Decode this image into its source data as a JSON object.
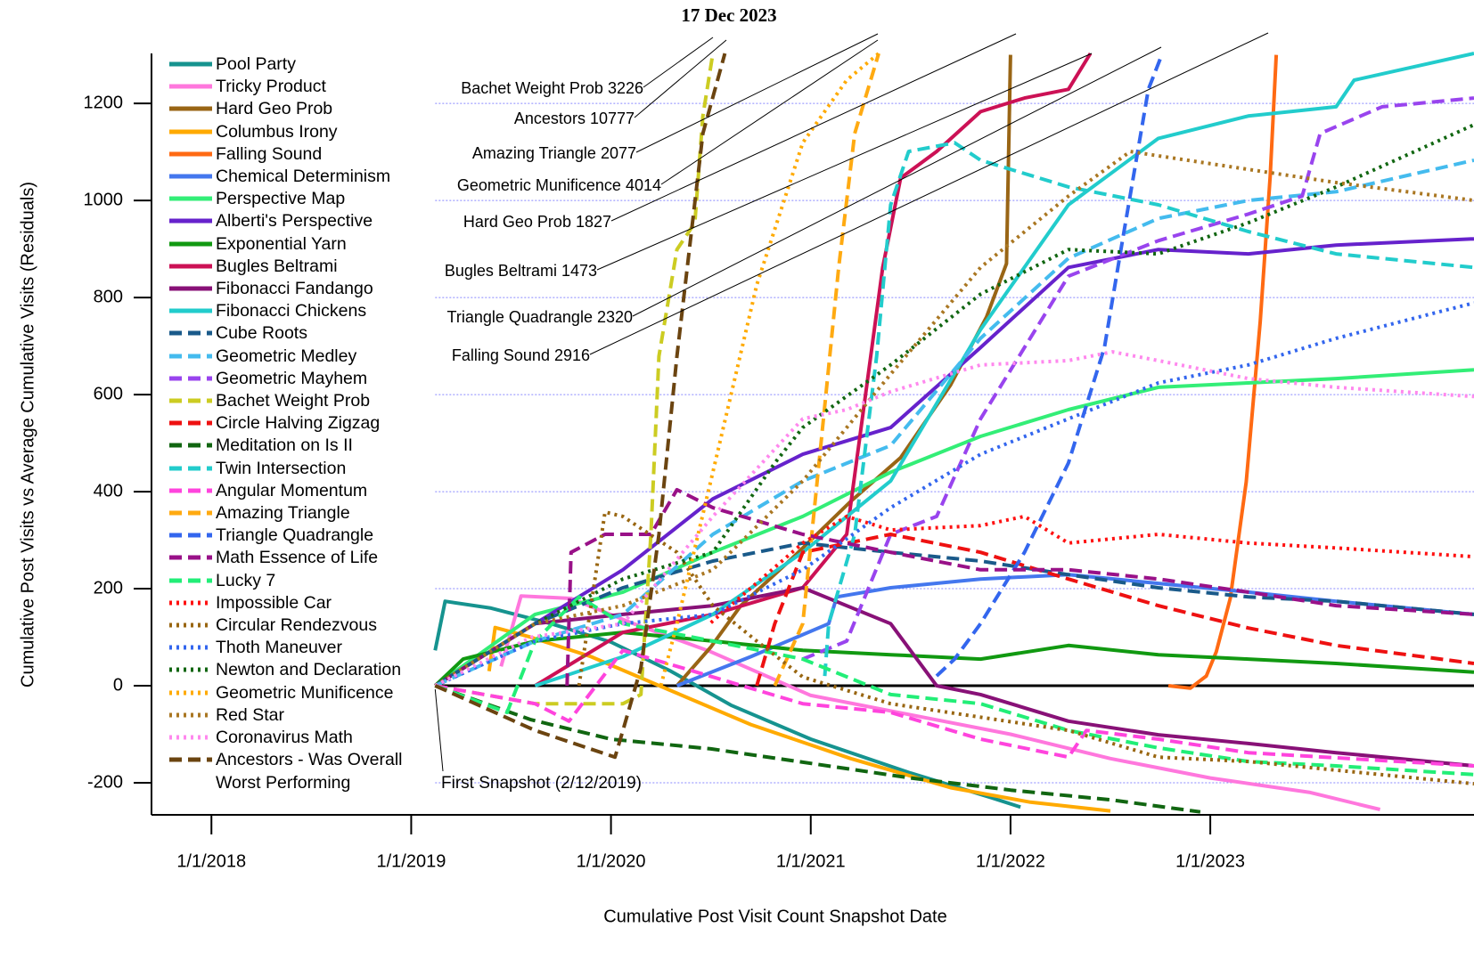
{
  "chart_data": {
    "type": "line",
    "title": "17 Dec 2023",
    "x_label": "Cumulative Post Visit Count Snapshot Date",
    "y_label": "Cumulative Post Visits vs Average Cumulative Visits (Residuals)",
    "xlim": [
      2017.7,
      2024.32
    ],
    "ylim": [
      -266,
      1303
    ],
    "xticks": [
      {
        "value": 2018,
        "label": "1/1/2018"
      },
      {
        "value": 2019,
        "label": "1/1/2019"
      },
      {
        "value": 2020,
        "label": "1/1/2020"
      },
      {
        "value": 2021,
        "label": "1/1/2021"
      },
      {
        "value": 2022,
        "label": "1/1/2022"
      },
      {
        "value": 2023,
        "label": "1/1/2023"
      }
    ],
    "yticks": [
      -200,
      0,
      200,
      400,
      600,
      800,
      1000,
      1200
    ],
    "grid": true,
    "legend": "upper-left",
    "annotations": [
      "Bachet Weight Prob 3226",
      "Ancestors 10777",
      "Amazing Triangle 2077",
      "Geometric Munificence 4014",
      "Hard Geo Prob 1827",
      "Bugles Beltrami 1473",
      "Triangle Quadrangle 2320",
      "Falling Sound 2916",
      "First Snapshot (2/12/2019)"
    ],
    "series": [
      {
        "name": "Pool Party",
        "color": "#16938f",
        "style": "solid",
        "x": [
          2019.12,
          2019.17,
          2019.4,
          2019.7,
          2020.0,
          2020.3,
          2020.6,
          2021.0,
          2021.5,
          2021.9,
          2022.05
        ],
        "values": [
          73,
          174,
          160,
          128,
          90,
          30,
          -40,
          -110,
          -180,
          -230,
          -250
        ]
      },
      {
        "name": "Tricky Product",
        "color": "#ff77dd",
        "style": "solid",
        "x": [
          2019.45,
          2019.55,
          2019.8,
          2020.1,
          2020.5,
          2021.0,
          2021.5,
          2022.0,
          2022.5,
          2023.0,
          2023.5,
          2023.85
        ],
        "values": [
          40,
          185,
          180,
          130,
          70,
          -20,
          -60,
          -100,
          -150,
          -190,
          -220,
          -255
        ]
      },
      {
        "name": "Hard Geo Prob",
        "color": "#996515",
        "style": "solid",
        "x": [
          2020.33,
          2020.5,
          2020.65,
          2020.9,
          2021.2,
          2021.45,
          2021.7,
          2021.88,
          2021.98,
          2022.0
        ],
        "values": [
          0,
          80,
          165,
          260,
          380,
          470,
          620,
          760,
          870,
          1300
        ]
      },
      {
        "name": "Columbus Irony",
        "color": "#ffaa00",
        "style": "solid",
        "x": [
          2019.39,
          2019.42,
          2019.6,
          2019.9,
          2020.3,
          2020.7,
          2021.2,
          2021.7,
          2022.1,
          2022.5
        ],
        "values": [
          30,
          120,
          100,
          60,
          -10,
          -80,
          -150,
          -210,
          -240,
          -258
        ]
      },
      {
        "name": "Falling Sound",
        "color": "#ff6a13",
        "style": "solid",
        "x": [
          2022.79,
          2022.9,
          2022.98,
          2023.03,
          2023.1,
          2023.18,
          2023.25,
          2023.3,
          2023.33
        ],
        "values": [
          0,
          -5,
          20,
          70,
          180,
          420,
          750,
          1050,
          1300
        ]
      },
      {
        "name": "Chemical Determinism",
        "color": "#4477ee",
        "style": "solid",
        "x": [
          2020.33,
          2020.7,
          2021.09,
          2021.13,
          2021.4,
          2021.85,
          2022.29,
          2022.74,
          2023.19,
          2023.63,
          2024.32
        ],
        "values": [
          0,
          60,
          128,
          183,
          202,
          220,
          229,
          211,
          193,
          174,
          147
        ]
      },
      {
        "name": "Perspective Map",
        "color": "#33ee77",
        "style": "solid",
        "x": [
          2019.12,
          2019.62,
          2020.06,
          2020.51,
          2020.96,
          2021.4,
          2021.85,
          2022.29,
          2022.74,
          2023.19,
          2023.63,
          2024.32
        ],
        "values": [
          0,
          147,
          193,
          275,
          349,
          440,
          514,
          569,
          615,
          624,
          633,
          651
        ]
      },
      {
        "name": "Alberti's Perspective",
        "color": "#6622cc",
        "style": "solid",
        "x": [
          2019.12,
          2019.62,
          2020.06,
          2020.51,
          2020.96,
          2021.4,
          2021.85,
          2022.29,
          2022.74,
          2023.19,
          2023.63,
          2024.32
        ],
        "values": [
          0,
          128,
          239,
          385,
          477,
          532,
          697,
          862,
          899,
          890,
          908,
          921
        ]
      },
      {
        "name": "Exponential Yarn",
        "color": "#119911",
        "style": "solid",
        "x": [
          2019.12,
          2019.26,
          2019.62,
          2020.06,
          2020.51,
          2020.96,
          2021.4,
          2021.85,
          2022.29,
          2022.74,
          2023.19,
          2023.63,
          2024.32
        ],
        "values": [
          0,
          55,
          92,
          110,
          92,
          73,
          64,
          55,
          83,
          64,
          55,
          46,
          28
        ]
      },
      {
        "name": "Bugles Beltrami",
        "color": "#cc1155",
        "style": "solid",
        "x": [
          2019.62,
          2020.06,
          2020.51,
          2020.96,
          2021.18,
          2021.36,
          2021.45,
          2021.63,
          2021.85,
          2022.07,
          2022.29,
          2022.4
        ],
        "values": [
          0,
          110,
          147,
          202,
          312,
          862,
          1046,
          1101,
          1183,
          1211,
          1229,
          1303
        ]
      },
      {
        "name": "Fibonacci Fandango",
        "color": "#881177",
        "style": "solid",
        "x": [
          2019.12,
          2019.62,
          2020.06,
          2020.51,
          2020.96,
          2021.4,
          2021.63,
          2021.85,
          2022.29,
          2022.74,
          2023.19,
          2023.63,
          2024.32
        ],
        "values": [
          0,
          128,
          147,
          165,
          202,
          128,
          0,
          -18,
          -73,
          -101,
          -119,
          -138,
          -165
        ]
      },
      {
        "name": "Fibonacci Chickens",
        "color": "#22cccc",
        "style": "solid",
        "x": [
          2019.62,
          2020.06,
          2020.51,
          2020.96,
          2021.4,
          2021.85,
          2022.29,
          2022.74,
          2023.19,
          2023.63,
          2023.72,
          2024.32
        ],
        "values": [
          0,
          60,
          147,
          275,
          422,
          734,
          991,
          1128,
          1174,
          1193,
          1248,
          1303
        ]
      },
      {
        "name": "Cube Roots",
        "color": "#1a5a8a",
        "style": "dashed",
        "x": [
          2019.12,
          2019.62,
          2020.06,
          2020.51,
          2020.96,
          2021.4,
          2021.85,
          2022.29,
          2022.74,
          2023.19,
          2023.63,
          2024.32
        ],
        "values": [
          0,
          128,
          202,
          257,
          294,
          275,
          257,
          229,
          202,
          183,
          174,
          147
        ]
      },
      {
        "name": "Geometric Medley",
        "color": "#44bbee",
        "style": "dashed",
        "x": [
          2019.12,
          2019.62,
          2020.06,
          2020.51,
          2020.96,
          2021.4,
          2021.85,
          2022.29,
          2022.74,
          2023.19,
          2023.63,
          2024.32
        ],
        "values": [
          0,
          92,
          147,
          312,
          422,
          495,
          716,
          881,
          963,
          1000,
          1018,
          1083
        ]
      },
      {
        "name": "Geometric Mayhem",
        "color": "#9944ee",
        "style": "dashed",
        "x": [
          2020.96,
          2021.18,
          2021.4,
          2021.63,
          2021.85,
          2022.29,
          2022.74,
          2023.19,
          2023.46,
          2023.55,
          2023.86,
          2024.32
        ],
        "values": [
          55,
          92,
          312,
          349,
          550,
          844,
          917,
          972,
          1009,
          1138,
          1193,
          1211
        ]
      },
      {
        "name": "Bachet Weight Prob",
        "color": "#cccc22",
        "style": "dashed",
        "x": [
          2019.12,
          2019.62,
          2020.06,
          2020.15,
          2020.2,
          2020.24,
          2020.33,
          2020.42,
          2020.46,
          2020.51
        ],
        "values": [
          0,
          -37,
          -37,
          -18,
          312,
          679,
          899,
          954,
          1174,
          1303
        ]
      },
      {
        "name": "Circle Halving Zigzag",
        "color": "#ee1111",
        "style": "dashed",
        "x": [
          2020.73,
          2020.82,
          2020.96,
          2021.4,
          2021.85,
          2022.29,
          2022.74,
          2023.19,
          2023.63,
          2024.32
        ],
        "values": [
          0,
          128,
          275,
          312,
          275,
          220,
          165,
          119,
          83,
          46
        ]
      },
      {
        "name": "Meditation on Is II",
        "color": "#116611",
        "style": "dashed",
        "x": [
          2019.12,
          2019.6,
          2020.0,
          2020.5,
          2021.0,
          2021.5,
          2022.0,
          2022.5,
          2022.95
        ],
        "values": [
          0,
          -70,
          -110,
          -130,
          -160,
          -190,
          -215,
          -235,
          -260
        ]
      },
      {
        "name": "Twin Intersection",
        "color": "#22cccc",
        "style": "dashed",
        "x": [
          2021.07,
          2021.09,
          2021.22,
          2021.33,
          2021.4,
          2021.49,
          2021.72,
          2021.85,
          2022.29,
          2022.74,
          2023.19,
          2023.63,
          2024.32
        ],
        "values": [
          20,
          128,
          312,
          679,
          991,
          1101,
          1119,
          1083,
          1028,
          991,
          936,
          890,
          862
        ]
      },
      {
        "name": "Angular Momentum",
        "color": "#ff44dd",
        "style": "dashed",
        "x": [
          2019.12,
          2019.62,
          2019.79,
          2020.06,
          2020.51,
          2020.96,
          2021.4,
          2021.85,
          2022.29,
          2022.38,
          2022.74,
          2023.19,
          2024.32
        ],
        "values": [
          0,
          -37,
          -73,
          73,
          18,
          -37,
          -55,
          -110,
          -147,
          -92,
          -110,
          -138,
          -165
        ]
      },
      {
        "name": "Amazing Triangle",
        "color": "#ffaa11",
        "style": "dashed",
        "x": [
          2020.82,
          2020.96,
          2021.05,
          2021.14,
          2021.22,
          2021.34
        ],
        "values": [
          0,
          128,
          495,
          862,
          1138,
          1303
        ]
      },
      {
        "name": "Triangle Quadrangle",
        "color": "#3366ee",
        "style": "dashed",
        "x": [
          2021.63,
          2021.72,
          2021.85,
          2022.07,
          2022.29,
          2022.47,
          2022.56,
          2022.69,
          2022.76
        ],
        "values": [
          20,
          55,
          128,
          275,
          459,
          697,
          917,
          1229,
          1303
        ]
      },
      {
        "name": "Math Essence of Life",
        "color": "#991188",
        "style": "dashed",
        "x": [
          2019.78,
          2019.8,
          2019.97,
          2020.2,
          2020.33,
          2020.51,
          2020.96,
          2021.4,
          2021.85,
          2022.29,
          2022.74,
          2023.19,
          2023.63,
          2024.32
        ],
        "values": [
          0,
          275,
          312,
          312,
          404,
          367,
          312,
          275,
          239,
          239,
          220,
          193,
          165,
          147
        ]
      },
      {
        "name": "Lucky 7",
        "color": "#22ee77",
        "style": "dashed",
        "x": [
          2019.12,
          2019.48,
          2019.62,
          2019.84,
          2020.06,
          2020.51,
          2020.96,
          2021.4,
          2021.85,
          2022.29,
          2022.74,
          2023.19,
          2023.63,
          2024.32
        ],
        "values": [
          0,
          -55,
          92,
          183,
          128,
          92,
          55,
          -18,
          -37,
          -92,
          -128,
          -156,
          -165,
          -183
        ]
      },
      {
        "name": "Impossible Car",
        "color": "#ff1111",
        "style": "dotted",
        "x": [
          2020.5,
          2020.96,
          2021.18,
          2021.4,
          2021.85,
          2022.07,
          2022.29,
          2022.74,
          2023.19,
          2023.63,
          2024.32
        ],
        "values": [
          130,
          294,
          349,
          321,
          330,
          349,
          294,
          312,
          294,
          284,
          266
        ]
      },
      {
        "name": "Circular Rendezvous",
        "color": "#996611",
        "style": "dotted",
        "x": [
          2019.84,
          2019.97,
          2020.06,
          2020.33,
          2020.51,
          2020.73,
          2020.96,
          2021.4,
          2022.29,
          2022.74,
          2023.19,
          2024.32
        ],
        "values": [
          0,
          358,
          349,
          275,
          165,
          92,
          18,
          -37,
          -92,
          -147,
          -156,
          -202
        ]
      },
      {
        "name": "Thoth Maneuver",
        "color": "#3366ee",
        "style": "dotted",
        "x": [
          2019.12,
          2019.62,
          2020.06,
          2020.51,
          2020.96,
          2021.4,
          2021.85,
          2022.29,
          2022.74,
          2023.19,
          2023.63,
          2024.32
        ],
        "values": [
          0,
          92,
          128,
          147,
          239,
          367,
          477,
          550,
          624,
          661,
          716,
          789
        ]
      },
      {
        "name": "Newton and Declaration",
        "color": "#116611",
        "style": "dotted",
        "x": [
          2019.12,
          2019.62,
          2020.06,
          2020.51,
          2020.82,
          2020.96,
          2021.4,
          2021.85,
          2022.29,
          2022.74,
          2023.19,
          2023.63,
          2024.32
        ],
        "values": [
          0,
          128,
          220,
          275,
          459,
          532,
          661,
          807,
          899,
          890,
          954,
          1028,
          1156
        ]
      },
      {
        "name": "Geometric Munificence",
        "color": "#ffaa00",
        "style": "dotted",
        "x": [
          2020.25,
          2020.33,
          2020.51,
          2020.73,
          2020.96,
          2021.18,
          2021.34
        ],
        "values": [
          0,
          128,
          440,
          826,
          1119,
          1248,
          1303
        ]
      },
      {
        "name": "Red Star",
        "color": "#aa7722",
        "style": "dotted",
        "x": [
          2019.12,
          2019.62,
          2020.06,
          2020.51,
          2020.96,
          2021.4,
          2021.85,
          2022.29,
          2022.6,
          2022.74,
          2023.19,
          2023.63,
          2024.32
        ],
        "values": [
          0,
          128,
          165,
          239,
          422,
          642,
          862,
          1009,
          1101,
          1092,
          1064,
          1037,
          1000
        ]
      },
      {
        "name": "Coronavirus Math",
        "color": "#ff88ee",
        "style": "dotted",
        "x": [
          2019.12,
          2019.6,
          2020.06,
          2020.51,
          2020.96,
          2021.18,
          2021.4,
          2021.85,
          2022.29,
          2022.51,
          2022.74,
          2023.19,
          2023.63,
          2024.32
        ],
        "values": [
          0,
          100,
          128,
          349,
          550,
          569,
          606,
          661,
          670,
          688,
          670,
          633,
          615,
          596
        ]
      },
      {
        "name": "Ancestors - Was Overall Worst Performing",
        "color": "#6b4410",
        "style": "dashed",
        "x": [
          2019.12,
          2019.62,
          2020.02,
          2020.06,
          2020.15,
          2020.24,
          2020.33,
          2020.46,
          2020.57
        ],
        "values": [
          0,
          -92,
          -147,
          -92,
          37,
          312,
          679,
          1138,
          1303
        ]
      }
    ]
  }
}
